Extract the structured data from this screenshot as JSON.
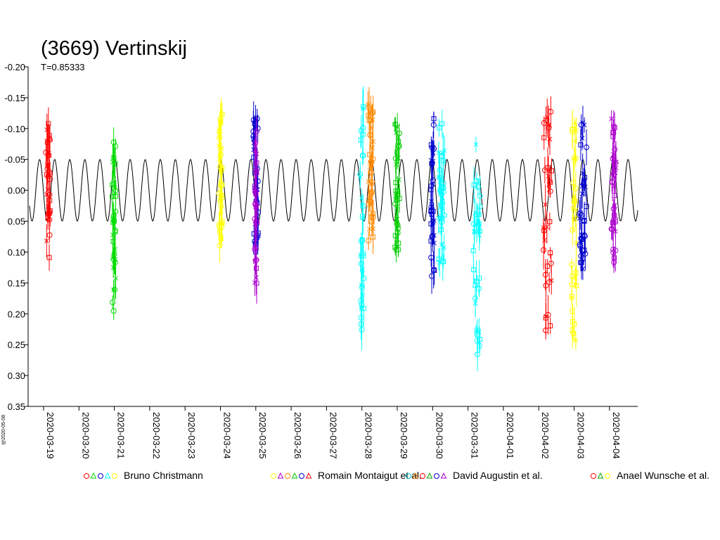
{
  "title": "(3669) Vertinskij",
  "subtitle": "T=0.85333",
  "watermark": "@2020-05-08",
  "chart_data": {
    "type": "scatter",
    "title": "(3669) Vertinskij",
    "subtitle": "T=0.85333",
    "xlabel": "",
    "ylabel": "",
    "y_inverted": true,
    "ylim": [
      -0.2,
      0.35
    ],
    "yticks": [
      -0.2,
      -0.15,
      -0.1,
      -0.05,
      0.0,
      0.05,
      0.1,
      0.15,
      0.2,
      0.25,
      0.3,
      0.35
    ],
    "ytick_labels": [
      "-0.20",
      "-0.15",
      "-0.10",
      "-0.05",
      "0.00",
      "0.05",
      "0.10",
      "0.15",
      "0.20",
      "0.25",
      "0.30",
      "0.35"
    ],
    "xlim": [
      "2020-03-19",
      "2020-04-04T18:00"
    ],
    "xtick_labels": [
      "2020-03-19",
      "2020-03-20",
      "2020-03-21",
      "2020-03-22",
      "2020-03-23",
      "2020-03-24",
      "2020-03-25",
      "2020-03-26",
      "2020-03-27",
      "2020-03-28",
      "2020-03-29",
      "2020-03-30",
      "2020-03-31",
      "2020-04-01",
      "2020-04-02",
      "2020-04-03",
      "2020-04-04"
    ],
    "grid": false,
    "model_curve": {
      "name": "model",
      "color": "#000000",
      "period_days": 0.42667,
      "amplitude": 0.05,
      "center": 0.0
    },
    "legend": [
      {
        "name": "Bruno Christmann",
        "marker_colors": [
          "#ff0000",
          "#00dd00",
          "#0000cc",
          "#00ffff",
          "#ffff00"
        ]
      },
      {
        "name": "Romain Montaigut et al.",
        "marker_colors": [
          "#ffff00",
          "#aa00cc",
          "#ff8800",
          "#00cc00",
          "#0000cc",
          "#ff0000"
        ]
      },
      {
        "name": "David Augustin et al.",
        "marker_colors": [
          "#00cccc",
          "#ff8800",
          "#ff0000",
          "#00aa00",
          "#0000cc",
          "#aa00cc"
        ]
      },
      {
        "name": "Anael Wunsche et al.",
        "marker_colors": [
          "#ff0000",
          "#00aa00",
          "#ffff00"
        ]
      }
    ],
    "series": [
      {
        "name": "",
        "color": "#ff0000",
        "x": "2020-03-19T03:00",
        "spread": 0.12,
        "ymin": -0.13,
        "ymax": 0.11
      },
      {
        "name": "",
        "color": "#00dd00",
        "x": "2020-03-21T00:00",
        "spread": 0.12,
        "ymin": -0.08,
        "ymax": 0.2
      },
      {
        "name": "",
        "color": "#ffff00",
        "x": "2020-03-24T00:00",
        "spread": 0.1,
        "ymin": -0.13,
        "ymax": 0.1
      },
      {
        "name": "",
        "color": "#0000cc",
        "x": "2020-03-25T00:00",
        "spread": 0.14,
        "ymin": -0.12,
        "ymax": 0.12
      },
      {
        "name": "",
        "color": "#aa00cc",
        "x": "2020-03-25T00:00",
        "spread": 0.06,
        "ymin": -0.1,
        "ymax": 0.16
      },
      {
        "name": "",
        "color": "#00ffff",
        "x": "2020-03-28T00:00",
        "spread": 0.1,
        "ymin": -0.14,
        "ymax": 0.23
      },
      {
        "name": "",
        "color": "#ff8800",
        "x": "2020-03-28T06:00",
        "spread": 0.16,
        "ymin": -0.14,
        "ymax": 0.1
      },
      {
        "name": "",
        "color": "#00cc00",
        "x": "2020-03-29T00:00",
        "spread": 0.14,
        "ymin": -0.11,
        "ymax": 0.12
      },
      {
        "name": "",
        "color": "#0000cc",
        "x": "2020-03-30T00:00",
        "spread": 0.1,
        "ymin": -0.12,
        "ymax": 0.14
      },
      {
        "name": "",
        "color": "#00ffff",
        "x": "2020-03-30T06:00",
        "spread": 0.18,
        "ymin": -0.11,
        "ymax": 0.13
      },
      {
        "name": "",
        "color": "#00ffff",
        "x": "2020-03-31T06:00",
        "spread": 0.2,
        "ymin": -0.1,
        "ymax": 0.28
      },
      {
        "name": "",
        "color": "#ff0000",
        "x": "2020-04-02T06:00",
        "spread": 0.24,
        "ymin": -0.13,
        "ymax": 0.24
      },
      {
        "name": "",
        "color": "#ffff00",
        "x": "2020-04-03T00:00",
        "spread": 0.14,
        "ymin": -0.11,
        "ymax": 0.25
      },
      {
        "name": "",
        "color": "#0000cc",
        "x": "2020-04-03T06:00",
        "spread": 0.2,
        "ymin": -0.11,
        "ymax": 0.13
      },
      {
        "name": "",
        "color": "#aa00cc",
        "x": "2020-04-04T03:00",
        "spread": 0.14,
        "ymin": -0.12,
        "ymax": 0.12
      }
    ]
  }
}
